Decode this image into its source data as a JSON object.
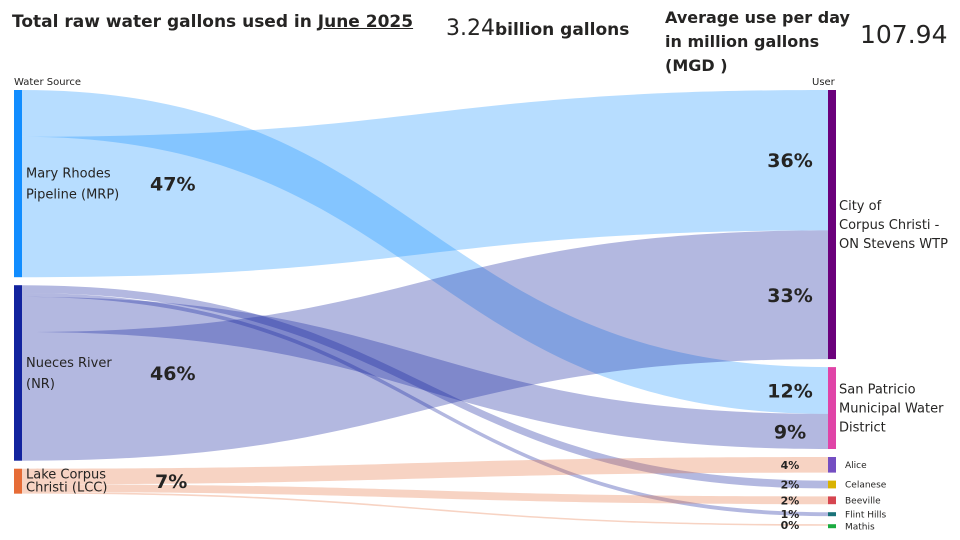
{
  "header": {
    "title_prefix": "Total raw water gallons used in ",
    "title_month": "June 2025",
    "total_value": "3.24",
    "total_unit": "billion gallons",
    "avg_label": "Average use per day in million gallons (MGD )",
    "avg_value": "107.94"
  },
  "chart_data": {
    "type": "sankey",
    "source_axis_label": "Water Source",
    "target_axis_label": "User",
    "sources": [
      {
        "id": "MRP",
        "name": "Mary Rhodes Pipeline (MRP)",
        "lines": [
          "Mary Rhodes",
          "Pipeline (MRP)"
        ],
        "percent": "47%",
        "color": "#118DFF"
      },
      {
        "id": "NR",
        "name": "Nueces River (NR)",
        "lines": [
          "Nueces River",
          "(NR)"
        ],
        "percent": "46%",
        "color": "#12239E"
      },
      {
        "id": "LCC",
        "name": "Lake Corpus Christi (LCC)",
        "lines": [
          "Lake Corpus",
          "Christi (LCC)"
        ],
        "percent": "7%",
        "color": "#E66C37"
      }
    ],
    "targets": [
      {
        "id": "City",
        "name": "City of Corpus Christi - ON Stevens WTP",
        "lines": [
          "City of",
          "Corpus Christi -",
          "ON Stevens WTP"
        ],
        "color": "#6B007B"
      },
      {
        "id": "SPMWD",
        "name": "San Patricio Municipal Water District",
        "lines": [
          "San Patricio",
          "Municipal Water",
          "District"
        ],
        "color": "#E044A7"
      },
      {
        "id": "Alice",
        "name": "Alice",
        "lines": [
          "Alice"
        ],
        "color": "#744EC2"
      },
      {
        "id": "Celanese",
        "name": "Celanese",
        "lines": [
          "Celanese"
        ],
        "color": "#D9B300"
      },
      {
        "id": "Beeville",
        "name": "Beeville",
        "lines": [
          "Beeville"
        ],
        "color": "#D64550"
      },
      {
        "id": "FlintHills",
        "name": "Flint Hills",
        "lines": [
          "Flint Hills"
        ],
        "color": "#197278"
      },
      {
        "id": "Mathis",
        "name": "Mathis",
        "lines": [
          "Mathis"
        ],
        "color": "#1AAB40"
      }
    ],
    "flows": [
      {
        "source": "MRP",
        "target": "SPMWD",
        "value": 12,
        "label": "12%"
      },
      {
        "source": "MRP",
        "target": "City",
        "value": 36,
        "label": "36%"
      },
      {
        "source": "NR",
        "target": "Celanese",
        "value": 2,
        "label": "2%"
      },
      {
        "source": "NR",
        "target": "FlintHills",
        "value": 1,
        "label": "1%"
      },
      {
        "source": "NR",
        "target": "SPMWD",
        "value": 9,
        "label": "9%"
      },
      {
        "source": "NR",
        "target": "City",
        "value": 33,
        "label": "33%"
      },
      {
        "source": "LCC",
        "target": "Alice",
        "value": 4,
        "label": "4%"
      },
      {
        "source": "LCC",
        "target": "Beeville",
        "value": 2,
        "label": "2%"
      },
      {
        "source": "LCC",
        "target": "Mathis",
        "value": 0.4,
        "label": "0%"
      }
    ]
  }
}
